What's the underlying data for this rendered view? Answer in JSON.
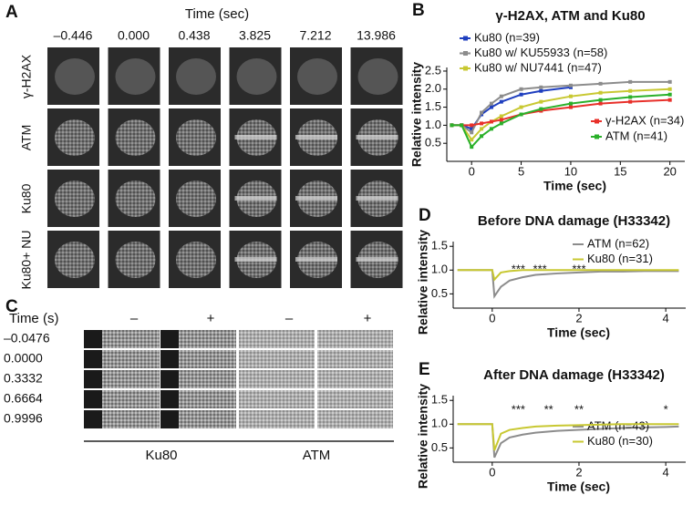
{
  "panel_a": {
    "label": "A",
    "time_title": "Time (sec)",
    "times": [
      "–0.446",
      "0.000",
      "0.438",
      "3.825",
      "7.212",
      "13.986"
    ],
    "rows": [
      "γ-H2AX",
      "ATM",
      "Ku80",
      "Ku80+ NU"
    ]
  },
  "panel_c": {
    "label": "C",
    "time_title": "Time (s)",
    "columns": [
      "–",
      "+",
      "–",
      "+"
    ],
    "rows": [
      "–0.0476",
      "0.0000",
      "0.3332",
      "0.6664",
      "0.9996"
    ],
    "groups": [
      "Ku80",
      "ATM"
    ]
  },
  "chart_data": [
    {
      "type": "line",
      "label": "B",
      "title": "γ-H2AX, ATM and Ku80",
      "x_label": "Time (sec)",
      "y_label": "Relative intensity",
      "x": [
        -2,
        -1,
        0,
        1,
        2,
        3,
        5,
        7,
        10,
        13,
        16,
        20
      ],
      "xlim": [
        -2.5,
        21.5
      ],
      "xticks": [
        0,
        5,
        10,
        15,
        20
      ],
      "ylim": [
        0,
        2.6
      ],
      "yticks": [
        0.5,
        {
          "value": 1,
          "label": "1.0"
        },
        1.5,
        {
          "value": 2,
          "label": "2.0"
        },
        2.5
      ],
      "series": [
        {
          "name": "Ku80 (n=39)",
          "color": "#1f3fbf",
          "values": [
            1.0,
            1.0,
            0.9,
            1.3,
            1.5,
            1.65,
            1.85,
            1.95,
            2.05,
            null,
            null,
            null
          ]
        },
        {
          "name": "Ku80 w/ KU55933 (n=58)",
          "color": "#8c8c8c",
          "values": [
            1.0,
            1.0,
            0.8,
            1.35,
            1.6,
            1.8,
            2.0,
            2.05,
            2.1,
            2.15,
            2.2,
            2.2
          ]
        },
        {
          "name": "Ku80 w/ NU7441 (n=47)",
          "color": "#c8c832",
          "values": [
            1.0,
            1.0,
            0.6,
            0.9,
            1.1,
            1.25,
            1.5,
            1.65,
            1.8,
            1.9,
            1.95,
            2.0
          ]
        },
        {
          "name": "γ-H2AX (n=34)",
          "color": "#e8302a",
          "values": [
            1.0,
            1.0,
            1.0,
            1.05,
            1.1,
            1.15,
            1.3,
            1.4,
            1.5,
            1.6,
            1.65,
            1.7
          ]
        },
        {
          "name": "ATM (n=41)",
          "color": "#2ab02a",
          "values": [
            1.0,
            1.0,
            0.4,
            0.7,
            0.9,
            1.05,
            1.3,
            1.45,
            1.6,
            1.7,
            1.78,
            1.85
          ]
        }
      ]
    },
    {
      "type": "line",
      "label": "D",
      "title": "Before DNA damage (H33342)",
      "x_label": "Time (sec)",
      "y_label": "Relative intensity",
      "x": [
        -0.8,
        -0.4,
        -0.1,
        0,
        0.05,
        0.2,
        0.4,
        0.7,
        1,
        1.5,
        2,
        2.5,
        3,
        3.5,
        4,
        4.3
      ],
      "xlim": [
        -0.9,
        4.46
      ],
      "xticks": [
        0,
        2,
        4
      ],
      "ylim": [
        0.2,
        1.6
      ],
      "yticks": [
        0.5,
        {
          "value": 1,
          "label": "1.0"
        },
        1.5
      ],
      "series": [
        {
          "name": "ATM (n=62)",
          "color": "#8c8c8c",
          "values": [
            1.0,
            1.0,
            1.0,
            1.0,
            0.45,
            0.65,
            0.78,
            0.85,
            0.9,
            0.93,
            0.95,
            0.97,
            0.97,
            0.98,
            0.98,
            0.98
          ]
        },
        {
          "name": "Ku80 (n=31)",
          "color": "#c8c832",
          "values": [
            1.0,
            1.0,
            1.0,
            1.0,
            0.8,
            0.95,
            0.98,
            1.0,
            1.0,
            1.0,
            1.0,
            1.0,
            1.0,
            1.0,
            1.0,
            1.0
          ]
        }
      ],
      "annotations": [
        {
          "text": "***",
          "x": 0.6
        },
        {
          "text": "***",
          "x": 1.1
        },
        {
          "text": "***",
          "x": 2.0
        }
      ]
    },
    {
      "type": "line",
      "label": "E",
      "title": "After DNA damage (H33342)",
      "x_label": "Time (sec)",
      "y_label": "Relative intensity",
      "x": [
        -0.8,
        -0.4,
        -0.1,
        0,
        0.05,
        0.2,
        0.4,
        0.7,
        1,
        1.5,
        2,
        2.5,
        3,
        3.5,
        4,
        4.3
      ],
      "xlim": [
        -0.9,
        4.46
      ],
      "xticks": [
        0,
        2,
        4
      ],
      "ylim": [
        0.2,
        1.6
      ],
      "yticks": [
        0.5,
        {
          "value": 1,
          "label": "1.0"
        },
        1.5
      ],
      "series": [
        {
          "name": "ATM (n=43)",
          "color": "#8c8c8c",
          "values": [
            1.0,
            1.0,
            1.0,
            1.0,
            0.3,
            0.6,
            0.72,
            0.78,
            0.82,
            0.86,
            0.88,
            0.9,
            0.92,
            0.93,
            0.94,
            0.95
          ]
        },
        {
          "name": "Ku80 (n=30)",
          "color": "#c8c832",
          "values": [
            1.0,
            1.0,
            1.0,
            1.0,
            0.45,
            0.8,
            0.88,
            0.92,
            0.95,
            0.97,
            0.98,
            0.99,
            1.0,
            1.0,
            1.0,
            1.0
          ]
        }
      ],
      "annotations": [
        {
          "text": "***",
          "x": 0.6
        },
        {
          "text": "**",
          "x": 1.3
        },
        {
          "text": "**",
          "x": 2.0
        },
        {
          "text": "*",
          "x": 4.0
        }
      ]
    }
  ]
}
